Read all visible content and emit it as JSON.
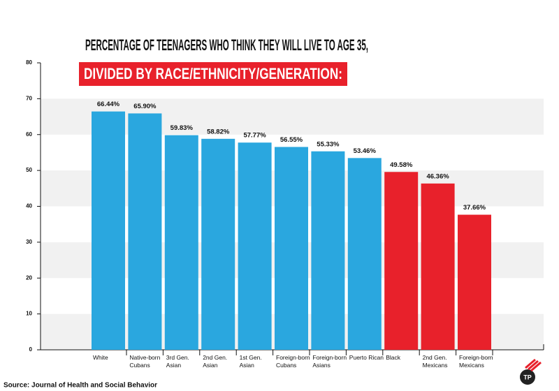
{
  "chart_data": {
    "type": "bar",
    "title": "PERCENTAGE OF TEENAGERS WHO THINK THEY WILL LIVE TO AGE 35,",
    "subtitle": "DIVIDED BY RACE/ETHNICITY/GENERATION:",
    "categories": [
      "White",
      "Native-born\nCubans",
      "3rd Gen.\nAsian",
      "2nd Gen.\nAsian",
      "1st Gen.\nAsian",
      "Foreign-born\nCubans",
      "Foreign-born\nAsians",
      "Puerto Rican",
      "Black",
      "2nd Gen.\nMexicans",
      "Foreign-born\nMexicans"
    ],
    "values": [
      66.44,
      65.9,
      59.83,
      58.82,
      57.77,
      56.55,
      55.33,
      53.46,
      49.58,
      46.36,
      37.66
    ],
    "value_labels": [
      "66.44%",
      "65.90%",
      "59.83%",
      "58.82%",
      "57.77%",
      "56.55%",
      "55.33%",
      "53.46%",
      "49.58%",
      "46.36%",
      "37.66%"
    ],
    "colors": [
      "#2aa7df",
      "#2aa7df",
      "#2aa7df",
      "#2aa7df",
      "#2aa7df",
      "#2aa7df",
      "#2aa7df",
      "#2aa7df",
      "#e8212b",
      "#e8212b",
      "#e8212b"
    ],
    "ylim": [
      0,
      80
    ],
    "yticks": [
      0,
      10,
      20,
      30,
      40,
      50,
      60,
      70,
      80
    ],
    "grid": "bands",
    "source": "Source: Journal of Health and Social Behavior",
    "logo": "TP"
  }
}
